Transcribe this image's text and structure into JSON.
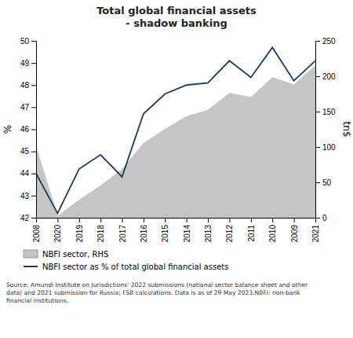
{
  "chart_data": {
    "type": "line",
    "title": "Total global financial assets\n- shadow banking",
    "categories": [
      "2008",
      "2020",
      "2019",
      "2018",
      "2017",
      "2016",
      "2015",
      "2014",
      "2013",
      "2012",
      "2011",
      "2010",
      "2009",
      "2021"
    ],
    "series": [
      {
        "name": "NBFI sector, RHS",
        "type": "area",
        "axis": "y2",
        "color": "#c5c5c5",
        "values": [
          100,
          2,
          25,
          45,
          68,
          105,
          125,
          143,
          152,
          176,
          170,
          198,
          188,
          215
        ]
      },
      {
        "name": "NBFI sector as % of total global financial assets",
        "type": "line",
        "color": "#1b3a5c",
        "values": [
          44.0,
          42.2,
          44.2,
          44.85,
          43.85,
          46.7,
          47.6,
          48.0,
          48.1,
          49.1,
          48.35,
          49.7,
          48.2,
          49.1
        ]
      }
    ],
    "ylim": [
      42,
      50
    ],
    "yticks": [
      42,
      43,
      44,
      45,
      46,
      47,
      48,
      49,
      50
    ],
    "y2lim": [
      0,
      250
    ],
    "y2ticks": [
      0,
      50,
      100,
      150,
      200,
      250
    ],
    "ylabel": "%",
    "y2label": "tn$",
    "annotations": [
      "Source: Amundi Institute on Jurisdictions' 2022 submissions (national sector balance sheet and other\ndata) and 2021 submission for Russia; FSB calculations. Data is as of 29 May 2023.NBFI: non-bank\nfinancial institutions."
    ],
    "grid": false,
    "legend": "bottom"
  }
}
